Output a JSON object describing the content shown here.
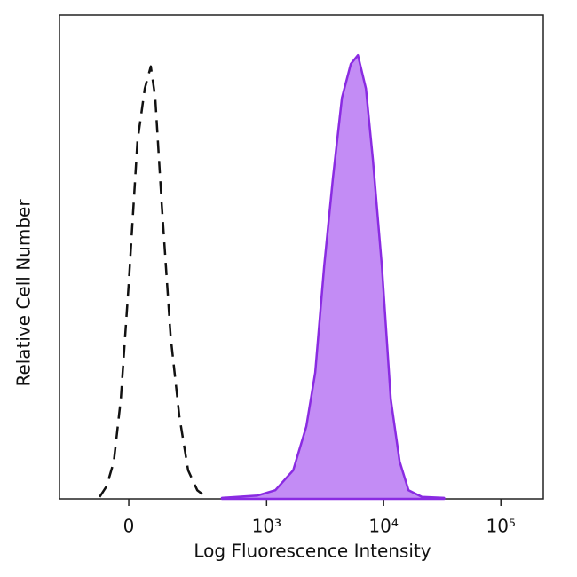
{
  "chart_data": {
    "type": "histogram-overlay",
    "x_label": "Log Fluorescence Intensity",
    "y_label": "Relative Cell Number",
    "x_scale": "biexponential",
    "xlim": [
      -244,
      230000
    ],
    "xticks": [
      0,
      {
        "value": 1000,
        "label": "10³"
      },
      {
        "value": 10000,
        "label": "10⁴"
      },
      {
        "value": 100000,
        "label": "10⁵"
      }
    ],
    "ylim": [
      0,
      100
    ],
    "series": [
      {
        "color": "#111111",
        "style": "dashed",
        "fill": false,
        "x": [
          -81,
          -60,
          -40,
          -21,
          0,
          23,
          43,
          60,
          73,
          93,
          123,
          156,
          194,
          240,
          291
        ],
        "values": [
          0.4,
          2.6,
          7.7,
          20.6,
          44.4,
          73.8,
          84.8,
          89.4,
          82.9,
          60.9,
          33.6,
          17.1,
          5.9,
          1.8,
          0.4
        ]
      },
      {
        "color": "#8a2be2",
        "fill_color": "#c38cf5",
        "style": "solid",
        "fill": true,
        "x": [
          407,
          835,
          1190,
          1690,
          2190,
          2610,
          3110,
          3700,
          4410,
          5250,
          6040,
          7060,
          8110,
          9660,
          11500,
          13700,
          16300,
          21200,
          32800
        ],
        "values": [
          0.2,
          0.7,
          1.8,
          5.9,
          15.0,
          26.1,
          48.1,
          66.4,
          82.9,
          89.9,
          91.7,
          84.8,
          70.1,
          48.1,
          20.6,
          7.7,
          1.8,
          0.4,
          0.2
        ]
      }
    ]
  }
}
